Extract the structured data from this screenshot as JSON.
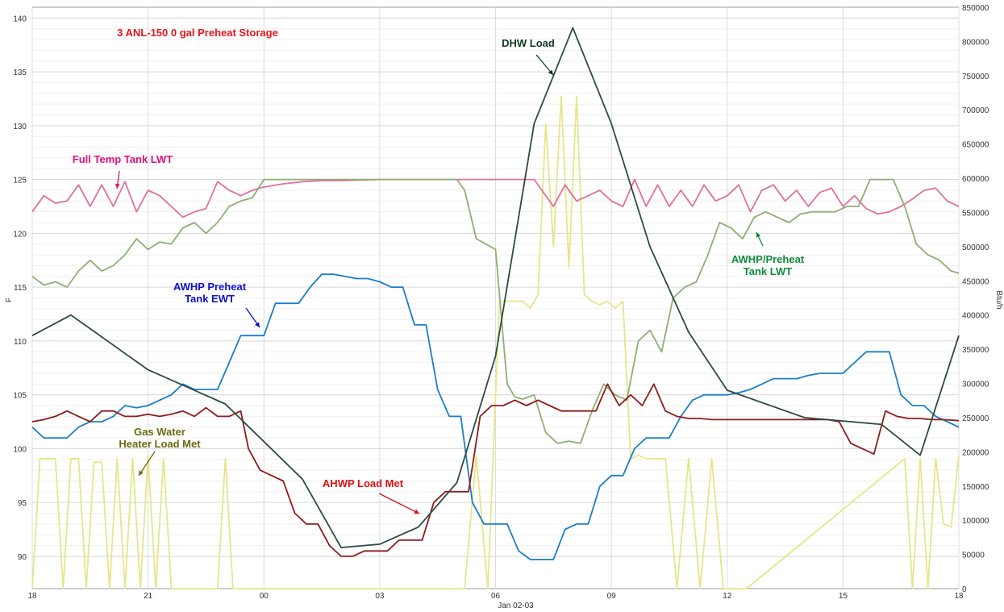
{
  "chart_data": {
    "type": "line",
    "title": "3 ANL-150 0 gal  Preheat Storage",
    "title_color": "#e8141c",
    "xlabel": "Jan 02-03",
    "ylabel": "F",
    "y2label": "Btu/h",
    "x_ticks": [
      "18",
      "21",
      "00",
      "03",
      "06",
      "09",
      "12",
      "15",
      "18"
    ],
    "x_range_hours": [
      18,
      42
    ],
    "ylim": [
      87,
      141
    ],
    "y_ticks": [
      90,
      95,
      100,
      105,
      110,
      115,
      120,
      125,
      130,
      135,
      140
    ],
    "y2lim": [
      0,
      850000
    ],
    "y2_ticks": [
      0,
      50000,
      100000,
      150000,
      200000,
      250000,
      300000,
      350000,
      400000,
      450000,
      500000,
      550000,
      600000,
      650000,
      700000,
      750000,
      800000,
      850000
    ],
    "grid": true,
    "series": [
      {
        "name": "Full Temp Tank LWT",
        "axis": "left",
        "color": "#e0709a",
        "x": [
          18,
          18.3,
          18.6,
          18.9,
          19.2,
          19.5,
          19.8,
          20.1,
          20.4,
          20.7,
          21,
          21.3,
          21.6,
          21.9,
          22.2,
          22.5,
          22.8,
          23.1,
          23.4,
          23.7,
          24,
          24.5,
          25,
          25.5,
          26,
          27,
          28,
          29,
          30,
          31,
          31.2,
          31.5,
          31.8,
          32.1,
          32.4,
          32.7,
          33,
          33.3,
          33.6,
          33.9,
          34.2,
          34.5,
          34.8,
          35.1,
          35.4,
          35.7,
          36,
          36.3,
          36.6,
          36.9,
          37.2,
          37.5,
          37.8,
          38.1,
          38.4,
          38.7,
          39,
          39.3,
          39.6,
          39.9,
          40.2,
          40.5,
          40.8,
          41.1,
          41.4,
          41.7,
          42
        ],
        "y": [
          122,
          123.5,
          122.8,
          123,
          124.5,
          122.5,
          124.5,
          122.5,
          124.8,
          122,
          124,
          123.5,
          122.5,
          121.5,
          122,
          122.3,
          124.8,
          124,
          123.5,
          124,
          124.3,
          124.6,
          124.8,
          124.9,
          124.9,
          125,
          125,
          125,
          125,
          125,
          124,
          122.5,
          124.5,
          123,
          123.5,
          124,
          123,
          122.5,
          125,
          122.5,
          124.5,
          122.5,
          124,
          122.5,
          124.5,
          123,
          123.5,
          124.5,
          122,
          124,
          124.5,
          123,
          124,
          122.5,
          123.8,
          124.2,
          122.5,
          123.5,
          122.3,
          121.8,
          122,
          122.5,
          123.2,
          124,
          124.2,
          123,
          122.5
        ]
      },
      {
        "name": "AWHP/Preheat Tank LWT",
        "axis": "left",
        "color": "#8fae74",
        "x": [
          18,
          18.3,
          18.6,
          18.9,
          19.2,
          19.5,
          19.8,
          20.1,
          20.4,
          20.7,
          21,
          21.3,
          21.6,
          21.9,
          22.2,
          22.5,
          22.8,
          23.1,
          23.4,
          23.7,
          24,
          25,
          26,
          27,
          28,
          29,
          29.2,
          29.5,
          30,
          30.3,
          30.5,
          30.7,
          31,
          31.3,
          31.6,
          31.9,
          32.2,
          32.5,
          32.8,
          33.1,
          33.4,
          33.7,
          34,
          34.3,
          34.6,
          34.9,
          35.2,
          35.5,
          35.8,
          36.1,
          36.4,
          36.7,
          37,
          37.3,
          37.6,
          37.9,
          38.2,
          38.5,
          38.8,
          39.1,
          39.4,
          39.7,
          40,
          40.3,
          40.6,
          40.9,
          41.2,
          41.5,
          41.8,
          42
        ],
        "y": [
          116,
          115.2,
          115.5,
          115,
          116.5,
          117.5,
          116.5,
          117,
          118,
          119.5,
          118.5,
          119.2,
          119,
          120.5,
          121,
          120,
          121,
          122.5,
          123,
          123.3,
          125,
          125,
          125,
          125,
          125,
          125,
          124,
          119.5,
          118.5,
          106,
          104.8,
          104.6,
          105,
          101.5,
          100.5,
          100.7,
          100.5,
          103.5,
          106,
          105,
          104.5,
          110,
          111,
          109,
          114,
          115,
          115.5,
          118,
          121,
          120.5,
          119.5,
          121.5,
          122,
          121.5,
          121,
          121.8,
          122,
          122,
          122,
          122.5,
          122.5,
          125,
          125,
          125,
          122.5,
          119,
          118,
          117.5,
          116.5,
          116.3
        ]
      },
      {
        "name": "AWHP Preheat Tank EWT",
        "axis": "left",
        "color": "#1a7ec8",
        "x": [
          18,
          18.3,
          18.6,
          18.9,
          19.2,
          19.5,
          19.8,
          20.1,
          20.4,
          20.7,
          21,
          21.3,
          21.6,
          21.9,
          22.2,
          22.5,
          22.8,
          23.1,
          23.4,
          23.7,
          24,
          24.3,
          24.6,
          24.9,
          25.2,
          25.5,
          25.8,
          26.1,
          26.4,
          26.7,
          27,
          27.3,
          27.6,
          27.9,
          28.2,
          28.5,
          28.8,
          29.1,
          29.4,
          29.7,
          30,
          30.3,
          30.6,
          30.9,
          31.2,
          31.5,
          31.8,
          32.1,
          32.4,
          32.7,
          33,
          33.3,
          33.6,
          33.9,
          34.2,
          34.5,
          34.8,
          35.1,
          35.4,
          35.7,
          36,
          36.3,
          36.6,
          36.9,
          37.2,
          37.5,
          37.8,
          38.1,
          38.4,
          38.7,
          39,
          39.3,
          39.6,
          39.9,
          40.2,
          40.5,
          40.8,
          41.1,
          41.4,
          41.7,
          42
        ],
        "y": [
          102,
          101,
          101,
          101,
          102,
          102.5,
          102.5,
          103,
          104,
          103.8,
          104,
          104.5,
          105,
          106,
          105.5,
          105.5,
          105.5,
          108,
          110.5,
          110.5,
          110.5,
          113.5,
          113.5,
          113.5,
          115,
          116.2,
          116.2,
          116,
          115.8,
          115.8,
          115.5,
          115,
          115,
          111.5,
          111.5,
          105.5,
          103,
          103,
          95,
          93,
          93,
          93,
          90.5,
          89.7,
          89.7,
          89.7,
          92.5,
          93,
          93,
          96.5,
          97.5,
          97.5,
          100,
          101,
          101,
          101,
          103,
          104.5,
          105,
          105,
          105,
          105.2,
          105.5,
          106,
          106.5,
          106.5,
          106.5,
          106.8,
          107,
          107,
          107,
          108,
          109,
          109,
          109,
          105,
          104,
          104,
          103,
          102.5,
          102
        ]
      },
      {
        "name": "AHWP Load Met",
        "axis": "left",
        "color": "#8e1b1b",
        "x": [
          18,
          18.3,
          18.6,
          18.9,
          19.2,
          19.5,
          19.8,
          20.1,
          20.4,
          20.7,
          21,
          21.3,
          21.6,
          21.9,
          22.2,
          22.5,
          22.8,
          23.1,
          23.4,
          23.6,
          23.9,
          24.2,
          24.5,
          24.8,
          25.1,
          25.4,
          25.7,
          26,
          26.3,
          26.6,
          26.9,
          27.2,
          27.5,
          27.8,
          28.1,
          28.4,
          28.7,
          29,
          29.3,
          29.6,
          29.9,
          30.2,
          30.5,
          30.8,
          31.1,
          31.4,
          31.7,
          32,
          32.3,
          32.6,
          32.9,
          33.2,
          33.5,
          33.8,
          34.1,
          34.4,
          34.7,
          35,
          35.3,
          35.6,
          35.9,
          36.2,
          36.5,
          36.8,
          37.1,
          37.4,
          37.7,
          38,
          38.3,
          38.6,
          38.9,
          39.2,
          39.5,
          39.8,
          40.1,
          40.4,
          40.7,
          41,
          41.3,
          41.6,
          42
        ],
        "y": [
          102.5,
          102.7,
          103,
          103.5,
          103,
          102.5,
          103.5,
          103.5,
          103,
          103,
          103.2,
          103,
          103.2,
          103.5,
          103,
          103.8,
          103,
          103,
          103.5,
          100,
          98,
          97.5,
          97,
          94,
          93,
          93,
          91,
          90,
          90,
          90.5,
          90.5,
          90.5,
          91.5,
          91.5,
          91.5,
          95,
          96,
          96,
          96,
          103,
          104,
          104,
          104.5,
          104,
          104.5,
          104,
          103.5,
          103.5,
          103.5,
          103.5,
          106,
          104,
          105,
          104,
          106,
          103.5,
          103,
          102.8,
          102.8,
          102.7,
          102.7,
          102.7,
          102.7,
          102.7,
          102.7,
          102.7,
          102.7,
          102.7,
          102.7,
          102.7,
          102.5,
          100.5,
          100,
          99.5,
          103.5,
          103,
          102.8,
          102.8,
          102.7,
          102.7,
          102.6
        ]
      },
      {
        "name": "DHW Load",
        "axis": "right",
        "color": "#2e4a40",
        "x": [
          18,
          19,
          21,
          23,
          25,
          26,
          27,
          28,
          29,
          30,
          31,
          32,
          33,
          34,
          35,
          36,
          38,
          40,
          41,
          42
        ],
        "y": [
          370000,
          400000,
          320000,
          270000,
          160000,
          60000,
          65000,
          90000,
          155000,
          340000,
          680000,
          820000,
          680000,
          500000,
          375000,
          290000,
          250000,
          240000,
          195000,
          370000
        ]
      },
      {
        "name": "Gas Water Heater Load Met",
        "axis": "right",
        "color": "#e6e68a",
        "x": [
          18,
          18.2,
          18.4,
          18.6,
          18.8,
          19,
          19.2,
          19.4,
          19.6,
          19.8,
          20,
          20.2,
          20.4,
          20.6,
          20.8,
          21,
          21.2,
          21.4,
          21.6,
          21.8,
          22,
          22.2,
          22.4,
          22.6,
          22.8,
          23,
          23.2,
          23.4,
          29.2,
          29.5,
          29.8,
          30.1,
          30.4,
          30.7,
          30.9,
          31.1,
          31.3,
          31.5,
          31.7,
          31.9,
          32.1,
          32.3,
          32.5,
          32.7,
          32.9,
          33.1,
          33.3,
          33.5,
          33.7,
          33.9,
          34.1,
          34.4,
          34.7,
          35,
          35.3,
          35.6,
          35.9,
          36.2,
          36.5,
          40.6,
          40.8,
          41,
          41.2,
          41.4,
          41.6,
          41.8,
          42
        ],
        "y": [
          0,
          190000,
          190000,
          190000,
          0,
          190000,
          190000,
          0,
          185000,
          185000,
          0,
          190000,
          0,
          190000,
          0,
          195000,
          0,
          190000,
          0,
          0,
          0,
          0,
          0,
          0,
          0,
          190000,
          0,
          0,
          0,
          195000,
          0,
          420000,
          420000,
          420000,
          410000,
          430000,
          680000,
          500000,
          720000,
          470000,
          720000,
          430000,
          420000,
          415000,
          420000,
          410000,
          420000,
          190000,
          195000,
          190000,
          190000,
          190000,
          0,
          190000,
          0,
          190000,
          0,
          0,
          0,
          190000,
          0,
          190000,
          0,
          190000,
          95000,
          90000,
          195000
        ]
      }
    ],
    "annotations": [
      {
        "text": "Full Temp Tank LWT",
        "color": "#e0107a"
      },
      {
        "text": "DHW Load",
        "color": "#103820"
      },
      {
        "text": "AWHP Preheat\nTank EWT",
        "color": "#1010d0"
      },
      {
        "text": "AWHP/Preheat\nTank LWT",
        "color": "#0e8a3c"
      },
      {
        "text": "Gas Water\nHeater Load Met",
        "color": "#6a6a10"
      },
      {
        "text": "AHWP Load Met",
        "color": "#e01010"
      }
    ]
  }
}
